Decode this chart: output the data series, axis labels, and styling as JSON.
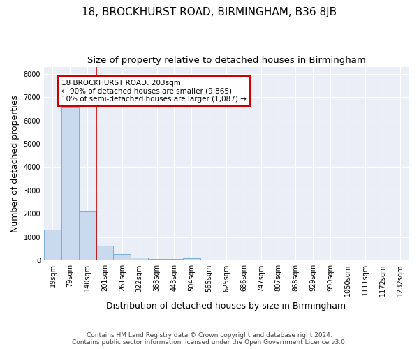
{
  "title_line1": "18, BROCKHURST ROAD, BIRMINGHAM, B36 8JB",
  "title_line2": "Size of property relative to detached houses in Birmingham",
  "xlabel": "Distribution of detached houses by size in Birmingham",
  "ylabel": "Number of detached properties",
  "categories": [
    "19sqm",
    "79sqm",
    "140sqm",
    "201sqm",
    "261sqm",
    "322sqm",
    "383sqm",
    "443sqm",
    "504sqm",
    "565sqm",
    "625sqm",
    "686sqm",
    "747sqm",
    "807sqm",
    "868sqm",
    "929sqm",
    "990sqm",
    "1050sqm",
    "1111sqm",
    "1172sqm",
    "1232sqm"
  ],
  "values": [
    1320,
    6550,
    2100,
    640,
    290,
    130,
    80,
    60,
    90,
    0,
    0,
    0,
    0,
    0,
    0,
    0,
    0,
    0,
    0,
    0,
    0
  ],
  "bar_color": "#c9d9ee",
  "bar_edge_color": "#7bafd4",
  "vline_color": "#cc0000",
  "annotation_text": "18 BROCKHURST ROAD: 203sqm\n← 90% of detached houses are smaller (9,865)\n10% of semi-detached houses are larger (1,087) →",
  "annotation_box_color": "#ffffff",
  "annotation_box_edge_color": "#cc0000",
  "ylim": [
    0,
    8300
  ],
  "yticks": [
    0,
    1000,
    2000,
    3000,
    4000,
    5000,
    6000,
    7000,
    8000
  ],
  "bg_color": "#eaeff7",
  "footer_line1": "Contains HM Land Registry data © Crown copyright and database right 2024.",
  "footer_line2": "Contains public sector information licensed under the Open Government Licence v3.0.",
  "title_fontsize": 11,
  "subtitle_fontsize": 9.5,
  "tick_fontsize": 7,
  "axis_label_fontsize": 9,
  "footer_fontsize": 6.5
}
